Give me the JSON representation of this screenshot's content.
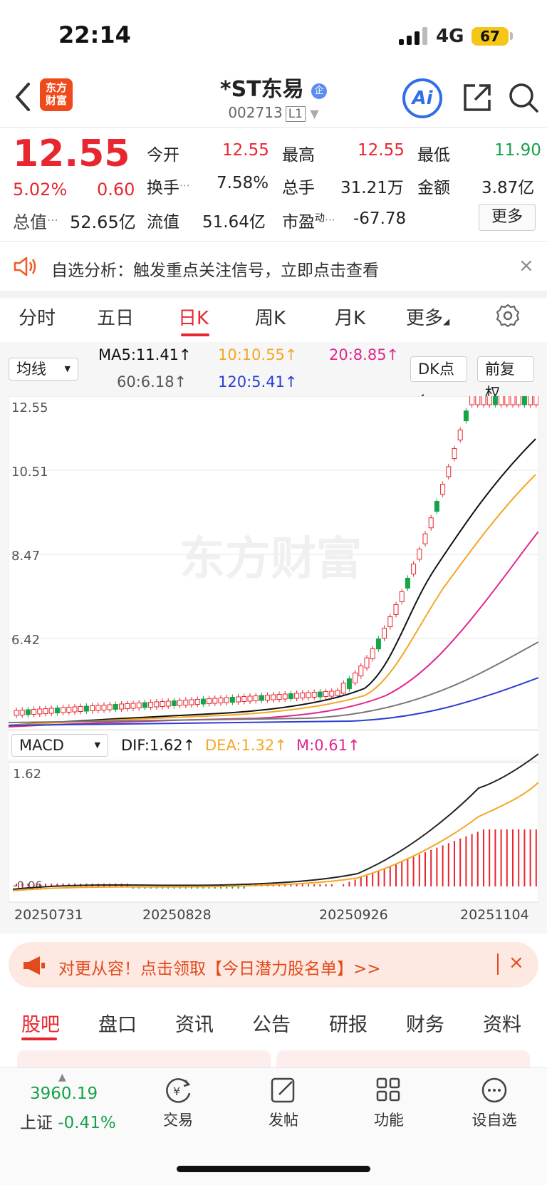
{
  "status": {
    "time": "22:14",
    "network": "4G",
    "battery": "67"
  },
  "header": {
    "logo_line1": "东方",
    "logo_line2": "财富",
    "stock_name": "*ST东易",
    "badge": "企",
    "code": "002713",
    "level": "L1",
    "ai_label": "Ai"
  },
  "quote": {
    "price": "12.55",
    "change_pct": "5.02%",
    "change_val": "0.60",
    "total_mv_label": "总值",
    "total_mv": "52.65亿",
    "open_label": "今开",
    "open": "12.55",
    "high_label": "最高",
    "high": "12.55",
    "low_label": "最低",
    "low": "11.90",
    "turnover_label": "换手",
    "turnover": "7.58%",
    "volume_label": "总手",
    "volume": "31.21万",
    "amount_label": "金额",
    "amount": "3.87亿",
    "float_label": "流值",
    "float_mv": "51.64亿",
    "pe_label": "市盈",
    "pe_sup": "动",
    "pe": "-67.78",
    "more": "更多"
  },
  "alert": {
    "text": "自选分析：触发重点关注信号，立即点击查看",
    "close": "×"
  },
  "tabs": [
    "分时",
    "五日",
    "日K",
    "周K",
    "月K",
    "更多"
  ],
  "chart": {
    "ma_select": "均线",
    "ma5": "MA5:11.41↑",
    "ma10": "10:10.55↑",
    "ma20": "20:8.85↑",
    "ma60": "60:6.18↑",
    "ma120": "120:5.41↑",
    "dk_btn": "DK点",
    "fq_btn": "前复权",
    "price_ticks": [
      "12.55",
      "10.51",
      "8.47",
      "6.42"
    ],
    "watermark": "东方财富",
    "macd_select": "MACD",
    "dif": "DIF:1.62↑",
    "dea": "DEA:1.32↑",
    "m": "M:0.61↑",
    "macd_top": "1.62",
    "macd_bottom": "-0.06",
    "dates": [
      "20250731",
      "20250828",
      "20250926",
      "20251104"
    ],
    "colors": {
      "ma5": "#111111",
      "ma10": "#f5a623",
      "ma20": "#e0278c",
      "ma60": "#666666",
      "ma120": "#2b3fd1",
      "up": "#e8262f",
      "down": "#16a34a"
    }
  },
  "promo": {
    "text": "对更从容！点击领取【今日潜力股名单】>>",
    "close": "×"
  },
  "bottom_tabs": [
    "股吧",
    "盘口",
    "资讯",
    "公告",
    "研报",
    "财务",
    "资料"
  ],
  "bottom_nav": {
    "index_value": "3960.19",
    "index_name": "上证",
    "index_change": "-0.41%",
    "items": [
      "交易",
      "发帖",
      "功能",
      "设自选"
    ]
  }
}
